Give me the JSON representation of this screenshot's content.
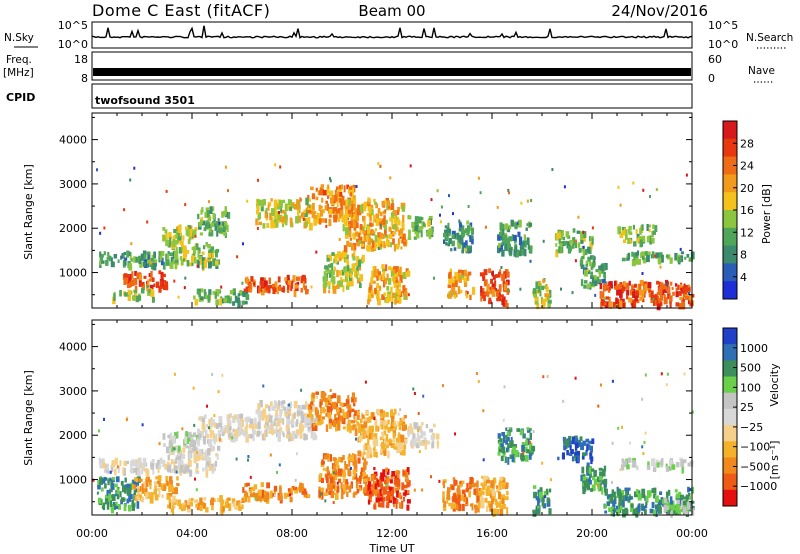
{
  "header": {
    "station": "Dome C East (fitACF)",
    "beam": "Beam 00",
    "date": "24/Nov/2016"
  },
  "colors": {
    "power_scale": [
      "#1f2fd6",
      "#2a5db8",
      "#3b8a6e",
      "#4fa658",
      "#8cc63f",
      "#f4c21b",
      "#f29a1b",
      "#f06b16",
      "#e8380f",
      "#d7191c"
    ],
    "velocity_scale": [
      "#e60f0f",
      "#ef5a14",
      "#f1891c",
      "#f4b22b",
      "#f5d08a",
      "#d8d8d8",
      "#c4c4c4",
      "#6ad04a",
      "#3c8f5a",
      "#2f6fb5",
      "#2140c8"
    ]
  },
  "chart_data": [
    {
      "type": "line",
      "panel": "N.Sky / N.Search",
      "left_label": "N.Sky",
      "right_label": "N.Search",
      "left_ticks": [
        "10^5",
        "10^0"
      ],
      "right_ticks": [
        "10^5",
        "10^0"
      ],
      "x_range_hours": [
        0,
        24
      ]
    },
    {
      "type": "line",
      "panel": "Freq. / Nave",
      "left_label": "Freq.",
      "left_unit": "[MHz]",
      "right_label": "Nave",
      "left_ticks": [
        "18",
        "8"
      ],
      "right_ticks": [
        "60",
        "0"
      ],
      "x_range_hours": [
        0,
        24
      ]
    },
    {
      "type": "table",
      "panel": "CPID",
      "label": "CPID",
      "program": "twofsound 3501"
    },
    {
      "type": "heatmap",
      "title": "Power",
      "ylabel": "Slant Range [km]",
      "ylim": [
        200,
        4600
      ],
      "yticks": [
        "1000",
        "2000",
        "3000",
        "4000"
      ],
      "colorbar_label": "Power [dB]",
      "colorbar_ticks": [
        "4",
        "8",
        "12",
        "16",
        "20",
        "24",
        "28"
      ],
      "colorbar_range": [
        0,
        32
      ],
      "xlim_hours": [
        0,
        24
      ],
      "blobs": [
        {
          "t0": 0.2,
          "t1": 3.2,
          "r0": 1200,
          "r1": 1500,
          "v": 10
        },
        {
          "t0": 1.2,
          "t1": 3.0,
          "r0": 700,
          "r1": 1050,
          "v": 27
        },
        {
          "t0": 0.8,
          "t1": 2.4,
          "r0": 450,
          "r1": 650,
          "v": 14
        },
        {
          "t0": 3.0,
          "t1": 5.0,
          "r0": 1200,
          "r1": 1700,
          "v": 13
        },
        {
          "t0": 2.8,
          "t1": 4.2,
          "r0": 1700,
          "r1": 2100,
          "v": 15
        },
        {
          "t0": 4.0,
          "t1": 6.2,
          "r0": 350,
          "r1": 650,
          "v": 12
        },
        {
          "t0": 4.2,
          "t1": 5.4,
          "r0": 1900,
          "r1": 2500,
          "v": 11
        },
        {
          "t0": 6.0,
          "t1": 8.6,
          "r0": 600,
          "r1": 950,
          "v": 27
        },
        {
          "t0": 6.5,
          "t1": 8.8,
          "r0": 2100,
          "r1": 2700,
          "v": 17
        },
        {
          "t0": 8.6,
          "t1": 10.5,
          "r0": 2200,
          "r1": 3000,
          "v": 22
        },
        {
          "t0": 9.2,
          "t1": 10.8,
          "r0": 700,
          "r1": 1500,
          "v": 15
        },
        {
          "t0": 10.0,
          "t1": 12.5,
          "r0": 1600,
          "r1": 2700,
          "v": 20
        },
        {
          "t0": 11.0,
          "t1": 12.6,
          "r0": 400,
          "r1": 1200,
          "v": 20
        },
        {
          "t0": 12.6,
          "t1": 13.6,
          "r0": 1800,
          "r1": 2300,
          "v": 12
        },
        {
          "t0": 14.0,
          "t1": 15.2,
          "r0": 1500,
          "r1": 2200,
          "v": 8
        },
        {
          "t0": 14.2,
          "t1": 15.2,
          "r0": 500,
          "r1": 1100,
          "v": 21
        },
        {
          "t0": 15.5,
          "t1": 16.6,
          "r0": 300,
          "r1": 1100,
          "v": 28
        },
        {
          "t0": 16.2,
          "t1": 17.5,
          "r0": 1500,
          "r1": 2200,
          "v": 9
        },
        {
          "t0": 17.6,
          "t1": 18.3,
          "r0": 300,
          "r1": 900,
          "v": 15
        },
        {
          "t0": 18.5,
          "t1": 20.0,
          "r0": 1500,
          "r1": 2000,
          "v": 13
        },
        {
          "t0": 19.5,
          "t1": 20.5,
          "r0": 700,
          "r1": 1400,
          "v": 10
        },
        {
          "t0": 20.3,
          "t1": 24.0,
          "r0": 300,
          "r1": 850,
          "v": 27
        },
        {
          "t0": 21.0,
          "t1": 24.0,
          "r0": 1300,
          "r1": 1500,
          "v": 11
        },
        {
          "t0": 21.0,
          "t1": 22.5,
          "r0": 1700,
          "r1": 2100,
          "v": 13
        }
      ]
    },
    {
      "type": "heatmap",
      "title": "Velocity",
      "ylabel": "Slant Range [km]",
      "ylim": [
        200,
        4600
      ],
      "yticks": [
        "1000",
        "2000",
        "3000",
        "4000"
      ],
      "xlabel": "Time UT",
      "xticks": [
        "00:00",
        "04:00",
        "08:00",
        "12:00",
        "16:00",
        "20:00",
        "00:00"
      ],
      "xlim_hours": [
        0,
        24
      ],
      "colorbar_label": "Velocity",
      "colorbar_unit": "[m s⁻¹]",
      "colorbar_ticks": [
        "1000",
        "500",
        "100",
        "25",
        "−25",
        "−100",
        "−500",
        "−1000"
      ],
      "blobs": [
        {
          "t0": 0.2,
          "t1": 3.2,
          "r0": 1200,
          "r1": 1500,
          "v": 5
        },
        {
          "t0": 0.2,
          "t1": 1.8,
          "r0": 400,
          "r1": 1100,
          "v": 8
        },
        {
          "t0": 1.6,
          "t1": 3.4,
          "r0": 600,
          "r1": 1100,
          "v": 3
        },
        {
          "t0": 3.0,
          "t1": 5.0,
          "r0": 1200,
          "r1": 1800,
          "v": 5
        },
        {
          "t0": 2.8,
          "t1": 4.2,
          "r0": 1700,
          "r1": 2100,
          "v": 6
        },
        {
          "t0": 3.0,
          "t1": 6.0,
          "r0": 350,
          "r1": 650,
          "v": 3
        },
        {
          "t0": 4.2,
          "t1": 6.5,
          "r0": 1900,
          "r1": 2500,
          "v": 5
        },
        {
          "t0": 6.0,
          "t1": 8.6,
          "r0": 600,
          "r1": 950,
          "v": 2
        },
        {
          "t0": 6.5,
          "t1": 9.0,
          "r0": 2000,
          "r1": 2800,
          "v": 5
        },
        {
          "t0": 8.6,
          "t1": 10.5,
          "r0": 2200,
          "r1": 3000,
          "v": 2
        },
        {
          "t0": 9.0,
          "t1": 11.0,
          "r0": 700,
          "r1": 1600,
          "v": 2
        },
        {
          "t0": 10.5,
          "t1": 12.5,
          "r0": 1600,
          "r1": 2600,
          "v": 3
        },
        {
          "t0": 11.0,
          "t1": 12.6,
          "r0": 400,
          "r1": 1300,
          "v": 1
        },
        {
          "t0": 12.6,
          "t1": 13.8,
          "r0": 1800,
          "r1": 2300,
          "v": 5
        },
        {
          "t0": 14.0,
          "t1": 15.5,
          "r0": 400,
          "r1": 1100,
          "v": 2
        },
        {
          "t0": 15.5,
          "t1": 16.6,
          "r0": 300,
          "r1": 1100,
          "v": 3
        },
        {
          "t0": 16.2,
          "t1": 17.6,
          "r0": 1500,
          "r1": 2200,
          "v": 8
        },
        {
          "t0": 17.6,
          "t1": 18.3,
          "r0": 300,
          "r1": 900,
          "v": 8
        },
        {
          "t0": 18.6,
          "t1": 20.0,
          "r0": 1500,
          "r1": 2000,
          "v": 9
        },
        {
          "t0": 19.5,
          "t1": 20.5,
          "r0": 800,
          "r1": 1400,
          "v": 8
        },
        {
          "t0": 20.4,
          "t1": 24.0,
          "r0": 300,
          "r1": 850,
          "v": 8
        },
        {
          "t0": 22.8,
          "t1": 24.0,
          "r0": 300,
          "r1": 700,
          "v": 7
        },
        {
          "t0": 21.0,
          "t1": 24.0,
          "r0": 1300,
          "r1": 1500,
          "v": 6
        }
      ]
    }
  ]
}
